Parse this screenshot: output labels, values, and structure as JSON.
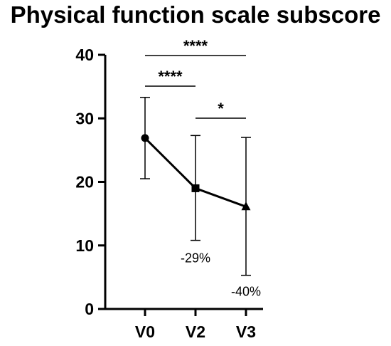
{
  "chart_data": {
    "type": "line",
    "title": "Physical function scale subscore",
    "xlabel": "",
    "ylabel": "",
    "categories": [
      "V0",
      "V2",
      "V3"
    ],
    "ylim": [
      0,
      40
    ],
    "yticks": [
      0,
      10,
      20,
      30,
      40
    ],
    "series": [
      {
        "values": [
          26.9,
          19.0,
          16.1
        ],
        "error_low": [
          20.5,
          10.8,
          5.3
        ],
        "error_high": [
          33.3,
          27.3,
          27.0
        ],
        "markers": [
          "circle",
          "square",
          "triangle"
        ],
        "point_labels": [
          "",
          "-29%",
          "-40%"
        ],
        "color": "#000000"
      }
    ],
    "significance": [
      {
        "from": "V0",
        "to": "V3",
        "label": "****"
      },
      {
        "from": "V0",
        "to": "V2",
        "label": "****"
      },
      {
        "from": "V2",
        "to": "V3",
        "label": "*"
      }
    ],
    "grid": false,
    "legend": "none"
  }
}
